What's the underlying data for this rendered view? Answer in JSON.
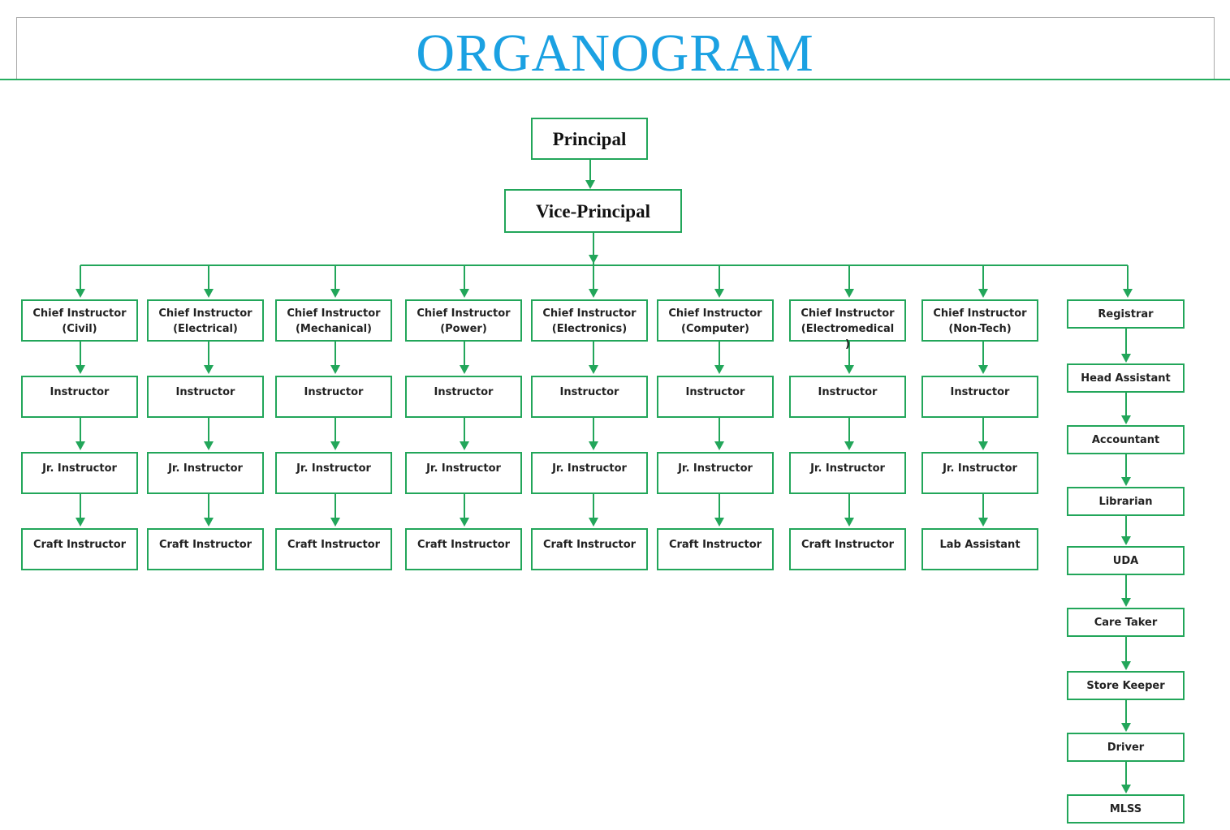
{
  "header": {
    "title": "ORGANOGRAM"
  },
  "colors": {
    "title": "#1ba1e2",
    "line": "#22a65a",
    "box_border": "#22a65a",
    "title_rule": "#27ae60"
  },
  "org": {
    "principal": "Principal",
    "vice_principal": "Vice-Principal",
    "departments": [
      {
        "chief": "Chief Instructor\n(Civil)",
        "instructor": "Instructor",
        "jr": "Jr. Instructor",
        "craft": "Craft Instructor"
      },
      {
        "chief": "Chief Instructor\n(Electrical)",
        "instructor": "Instructor",
        "jr": "Jr. Instructor",
        "craft": "Craft Instructor"
      },
      {
        "chief": "Chief Instructor\n(Mechanical)",
        "instructor": "Instructor",
        "jr": "Jr. Instructor",
        "craft": "Craft Instructor"
      },
      {
        "chief": "Chief Instructor\n(Power)",
        "instructor": "Instructor",
        "jr": "Jr. Instructor",
        "craft": "Craft Instructor"
      },
      {
        "chief": "Chief Instructor\n(Electronics)",
        "instructor": "Instructor",
        "jr": "Jr. Instructor",
        "craft": "Craft Instructor"
      },
      {
        "chief": "Chief Instructor\n(Computer)",
        "instructor": "Instructor",
        "jr": "Jr. Instructor",
        "craft": "Craft Instructor"
      },
      {
        "chief": "Chief Instructor\n(Electromedical\n)",
        "instructor": "Instructor",
        "jr": "Jr. Instructor",
        "craft": "Craft Instructor"
      },
      {
        "chief": "Chief Instructor\n(Non-Tech)",
        "instructor": "Instructor",
        "jr": "Jr. Instructor",
        "craft": "Lab Assistant"
      }
    ],
    "admin": [
      "Registrar",
      "Head Assistant",
      "Accountant",
      "Librarian",
      "UDA",
      "Care Taker",
      "Store Keeper",
      "Driver",
      "MLSS"
    ]
  }
}
